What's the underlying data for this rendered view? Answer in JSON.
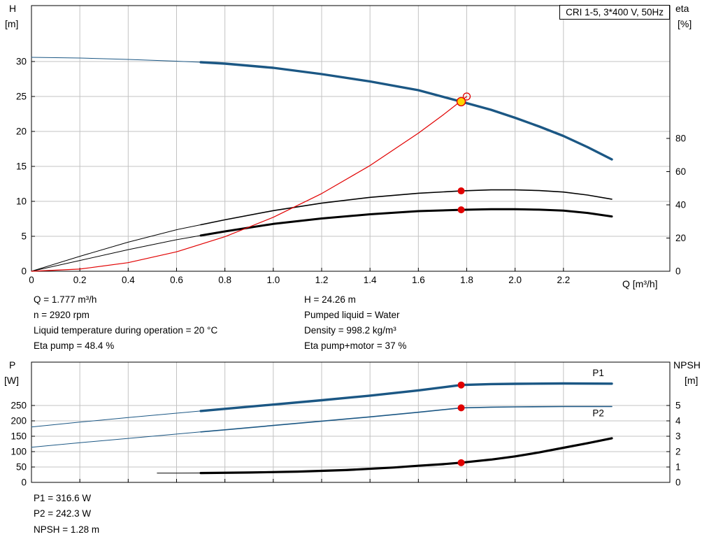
{
  "info_block": {
    "left": [
      "Q = 1.777 m³/h",
      "n = 2920 rpm",
      "Liquid temperature during operation = 20 °C",
      "Eta pump = 48.4 %"
    ],
    "right": [
      "H = 24.26 m",
      "Pumped liquid = Water",
      "Density = 998.2 kg/m³",
      "Eta pump+motor = 37 %"
    ]
  },
  "result_block": [
    "P1 = 316.6 W",
    "P2 = 242.3 W",
    "NPSH = 1.28 m"
  ],
  "colors": {
    "curve_blue": "#1b5784",
    "curve_red": "#e10000",
    "curve_black": "#000000",
    "duty_yellow": "#ffd500",
    "grid": "#c3c3c3",
    "axis": "#000000"
  },
  "chart_data": [
    {
      "type": "line",
      "title": "CRI 1-5, 3*400 V, 50Hz",
      "x_axis": {
        "label": "Q [m³/h]",
        "min": 0,
        "max": 2.64,
        "tick_values": [
          0,
          0.2,
          0.4,
          0.6,
          0.8,
          1.0,
          1.2,
          1.4,
          1.6,
          1.8,
          2.0,
          2.2
        ],
        "tick_labels": [
          "0",
          "0.2",
          "0.4",
          "0.6",
          "0.8",
          "1.0",
          "1.2",
          "1.4",
          "1.6",
          "1.8",
          "2.0",
          "2.2"
        ]
      },
      "y_left": {
        "label": "H",
        "unit": "[m]",
        "min": 0,
        "max": 38,
        "tick_values": [
          0,
          5,
          10,
          15,
          20,
          25,
          30
        ],
        "tick_labels": [
          "0",
          "5",
          "10",
          "15",
          "20",
          "25",
          "30"
        ]
      },
      "y_right": {
        "label": "eta",
        "unit": "[%]",
        "min": 0,
        "max": 160,
        "tick_values": [
          0,
          20,
          40,
          60,
          80
        ],
        "tick_labels": [
          "0",
          "20",
          "40",
          "60",
          "80"
        ]
      },
      "series": [
        {
          "name": "head-curve",
          "axis": "left",
          "color": "#1b5784",
          "thin_width": 1,
          "thick_width": 3.4,
          "thick_from": 0.7,
          "points": [
            [
              0,
              30.6
            ],
            [
              0.2,
              30.5
            ],
            [
              0.4,
              30.3
            ],
            [
              0.6,
              30.05
            ],
            [
              0.7,
              29.9
            ],
            [
              0.8,
              29.7
            ],
            [
              1.0,
              29.1
            ],
            [
              1.2,
              28.2
            ],
            [
              1.4,
              27.15
            ],
            [
              1.6,
              25.9
            ],
            [
              1.777,
              24.26
            ],
            [
              1.9,
              23.1
            ],
            [
              2.0,
              21.95
            ],
            [
              2.1,
              20.7
            ],
            [
              2.2,
              19.35
            ],
            [
              2.3,
              17.75
            ],
            [
              2.4,
              16.0
            ]
          ]
        },
        {
          "name": "eta-pump-curve",
          "axis": "right",
          "color": "#000000",
          "thin_width": 1,
          "thick_width": 1.6,
          "thick_from": 0.7,
          "points": [
            [
              0,
              0
            ],
            [
              0.2,
              9
            ],
            [
              0.4,
              17.5
            ],
            [
              0.6,
              25
            ],
            [
              0.7,
              28
            ],
            [
              0.8,
              31
            ],
            [
              1.0,
              36.5
            ],
            [
              1.2,
              41
            ],
            [
              1.4,
              44.5
            ],
            [
              1.6,
              47
            ],
            [
              1.777,
              48.4
            ],
            [
              1.9,
              49
            ],
            [
              2.0,
              49
            ],
            [
              2.1,
              48.6
            ],
            [
              2.2,
              47.7
            ],
            [
              2.3,
              45.9
            ],
            [
              2.4,
              43.4
            ]
          ]
        },
        {
          "name": "eta-pump-motor-curve",
          "axis": "right",
          "color": "#000000",
          "thin_width": 1,
          "thick_width": 3,
          "thick_from": 0.7,
          "points": [
            [
              0,
              0
            ],
            [
              0.2,
              6.5
            ],
            [
              0.4,
              13
            ],
            [
              0.6,
              19
            ],
            [
              0.7,
              21.5
            ],
            [
              0.8,
              24
            ],
            [
              1.0,
              28.5
            ],
            [
              1.2,
              31.8
            ],
            [
              1.4,
              34.3
            ],
            [
              1.6,
              36.2
            ],
            [
              1.777,
              37
            ],
            [
              1.9,
              37.4
            ],
            [
              2.0,
              37.4
            ],
            [
              2.1,
              37.1
            ],
            [
              2.2,
              36.5
            ],
            [
              2.3,
              35.1
            ],
            [
              2.4,
              33
            ]
          ]
        },
        {
          "name": "system-curve",
          "axis": "left",
          "color": "#e10000",
          "thin_width": 1.2,
          "thick_width": 1.2,
          "thick_from": null,
          "points": [
            [
              0,
              0
            ],
            [
              0.2,
              0.31
            ],
            [
              0.4,
              1.23
            ],
            [
              0.6,
              2.78
            ],
            [
              0.8,
              4.94
            ],
            [
              1.0,
              7.72
            ],
            [
              1.2,
              11.11
            ],
            [
              1.4,
              15.12
            ],
            [
              1.6,
              19.75
            ],
            [
              1.7,
              22.3
            ],
            [
              1.8,
              25.0
            ]
          ]
        }
      ],
      "markers": [
        {
          "name": "requested-duty-point",
          "x": 1.8,
          "y": 25.0,
          "axis": "left",
          "r": 5,
          "fill": "none",
          "stroke": "#e10000",
          "sw": 1.3
        },
        {
          "name": "duty-point",
          "x": 1.777,
          "y": 24.26,
          "axis": "left",
          "r": 6,
          "fill": "#ffd500",
          "stroke": "#e10000",
          "sw": 1.4
        },
        {
          "name": "eta-pump-dot",
          "x": 1.777,
          "y": 48.4,
          "axis": "right",
          "r": 5,
          "fill": "#e10000",
          "stroke": "none",
          "sw": 0
        },
        {
          "name": "eta-pump-motor-dot",
          "x": 1.777,
          "y": 37,
          "axis": "right",
          "r": 5,
          "fill": "#e10000",
          "stroke": "none",
          "sw": 0
        }
      ],
      "annotations": []
    },
    {
      "type": "line",
      "title": "",
      "x_axis": {
        "label": "",
        "min": 0,
        "max": 2.64,
        "tick_values": [
          0,
          0.2,
          0.4,
          0.6,
          0.8,
          1.0,
          1.2,
          1.4,
          1.6,
          1.8,
          2.0,
          2.2
        ],
        "tick_labels": null
      },
      "y_left": {
        "label": "P",
        "unit": "[W]",
        "min": 0,
        "max": 390.9,
        "tick_values": [
          0,
          50,
          100,
          150,
          200,
          250
        ],
        "tick_labels": [
          "0",
          "50",
          "100",
          "150",
          "200",
          "250"
        ]
      },
      "y_right": {
        "label": "NPSH",
        "unit": "[m]",
        "min": 0,
        "max": 7.818,
        "tick_values": [
          0,
          1,
          2,
          3,
          4,
          5
        ],
        "tick_labels": [
          "0",
          "1",
          "2",
          "3",
          "4",
          "5"
        ]
      },
      "series": [
        {
          "name": "p1-curve",
          "axis": "left",
          "color": "#1b5784",
          "thin_width": 1,
          "thick_width": 3.4,
          "thick_from": 0.7,
          "points": [
            [
              0,
              180
            ],
            [
              0.2,
              196
            ],
            [
              0.4,
              211
            ],
            [
              0.6,
              225
            ],
            [
              0.7,
              232
            ],
            [
              0.8,
              239
            ],
            [
              1.0,
              253
            ],
            [
              1.2,
              267
            ],
            [
              1.4,
              282
            ],
            [
              1.6,
              299
            ],
            [
              1.777,
              316.6
            ],
            [
              1.9,
              319.5
            ],
            [
              2.0,
              320.5
            ],
            [
              2.2,
              321.5
            ],
            [
              2.4,
              321
            ]
          ]
        },
        {
          "name": "p2-curve",
          "axis": "left",
          "color": "#1b5784",
          "thin_width": 1,
          "thick_width": 1.6,
          "thick_from": 0.7,
          "points": [
            [
              0,
              114
            ],
            [
              0.2,
              129
            ],
            [
              0.4,
              143
            ],
            [
              0.6,
              157
            ],
            [
              0.7,
              164
            ],
            [
              0.8,
              171
            ],
            [
              1.0,
              185
            ],
            [
              1.2,
              199
            ],
            [
              1.4,
              213
            ],
            [
              1.6,
              228
            ],
            [
              1.777,
              242.3
            ],
            [
              1.9,
              244.5
            ],
            [
              2.0,
              245.5
            ],
            [
              2.2,
              246.5
            ],
            [
              2.4,
              246.5
            ]
          ]
        },
        {
          "name": "npsh-curve",
          "axis": "right",
          "color": "#000000",
          "thin_width": 1,
          "thick_width": 3.2,
          "thick_from": 0.7,
          "points": [
            [
              0.52,
              0.6
            ],
            [
              0.7,
              0.61
            ],
            [
              0.9,
              0.64
            ],
            [
              1.1,
              0.7
            ],
            [
              1.3,
              0.8
            ],
            [
              1.5,
              0.97
            ],
            [
              1.6,
              1.08
            ],
            [
              1.7,
              1.18
            ],
            [
              1.777,
              1.28
            ],
            [
              1.9,
              1.48
            ],
            [
              2.0,
              1.69
            ],
            [
              2.1,
              1.95
            ],
            [
              2.2,
              2.25
            ],
            [
              2.3,
              2.55
            ],
            [
              2.4,
              2.87
            ]
          ]
        }
      ],
      "markers": [
        {
          "name": "p1-dot",
          "x": 1.777,
          "y": 316.6,
          "axis": "left",
          "r": 5,
          "fill": "#e10000",
          "stroke": "none",
          "sw": 0
        },
        {
          "name": "p2-dot",
          "x": 1.777,
          "y": 242.3,
          "axis": "left",
          "r": 5,
          "fill": "#e10000",
          "stroke": "none",
          "sw": 0
        },
        {
          "name": "npsh-dot",
          "x": 1.777,
          "y": 1.28,
          "axis": "right",
          "r": 5,
          "fill": "#e10000",
          "stroke": "none",
          "sw": 0
        }
      ],
      "annotations": [
        {
          "text": "P1",
          "x": 2.32,
          "y": 345,
          "axis": "left",
          "color": "#1b5784"
        },
        {
          "text": "P2",
          "x": 2.32,
          "y": 215,
          "axis": "left",
          "color": "#1b5784"
        }
      ]
    }
  ]
}
